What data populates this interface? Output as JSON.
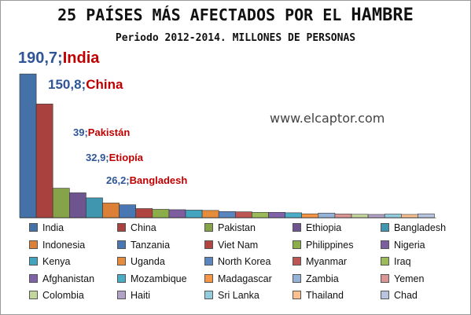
{
  "header": {
    "title_prefix": "25 PAÍSES MÁS AFECTADOS POR EL",
    "title_strong": "HAMBRE",
    "subtitle": "Periodo 2012-2014. MILLONES DE PERSONAS"
  },
  "watermark": "www.elcaptor.com",
  "annotations": [
    {
      "value": "190,7;",
      "name": "India",
      "size": 20
    },
    {
      "value": "150,8;",
      "name": "China",
      "size": 17
    },
    {
      "value": "39;",
      "name": "Pakistán",
      "size": 13
    },
    {
      "value": "32,9;",
      "name": "Etiopía",
      "size": 13
    },
    {
      "value": "26,2;",
      "name": "Bangladesh",
      "size": 13
    }
  ],
  "chart_data": {
    "type": "bar",
    "categories": [
      "India",
      "China",
      "Pakistan",
      "Ethiopia",
      "Bangladesh",
      "Indonesia",
      "Tanzania",
      "Viet Nam",
      "Philippines",
      "Nigeria",
      "Kenya",
      "Uganda",
      "North Korea",
      "Myanmar",
      "Iraq",
      "Afghanistan",
      "Mozambique",
      "Madagascar",
      "Zambia",
      "Yemen",
      "Colombia",
      "Haiti",
      "Sri Lanka",
      "Thailand",
      "Chad"
    ],
    "values": [
      190.7,
      150.8,
      39,
      32.9,
      26.2,
      19.4,
      17,
      12,
      11,
      10.5,
      10,
      9.5,
      8,
      7.7,
      7,
      7,
      6.4,
      5,
      6,
      4.8,
      4.4,
      4.2,
      4.7,
      4.2,
      5
    ],
    "colors": [
      "#4471a8",
      "#a9413f",
      "#87a34a",
      "#6f558f",
      "#3f96ae",
      "#db8036",
      "#4877b3",
      "#b04441",
      "#8bae4a",
      "#7c5d9f",
      "#42a4be",
      "#e68c3d",
      "#5a86c0",
      "#bd5653",
      "#9bbb59",
      "#7f62a8",
      "#4bacc6",
      "#f79646",
      "#95b3d7",
      "#d99694",
      "#c3d69b",
      "#b3a2c7",
      "#93cddd",
      "#fac090",
      "#b9c5e0"
    ],
    "ylim": [
      0,
      195
    ],
    "legend_position": "bottom",
    "grid": false
  }
}
